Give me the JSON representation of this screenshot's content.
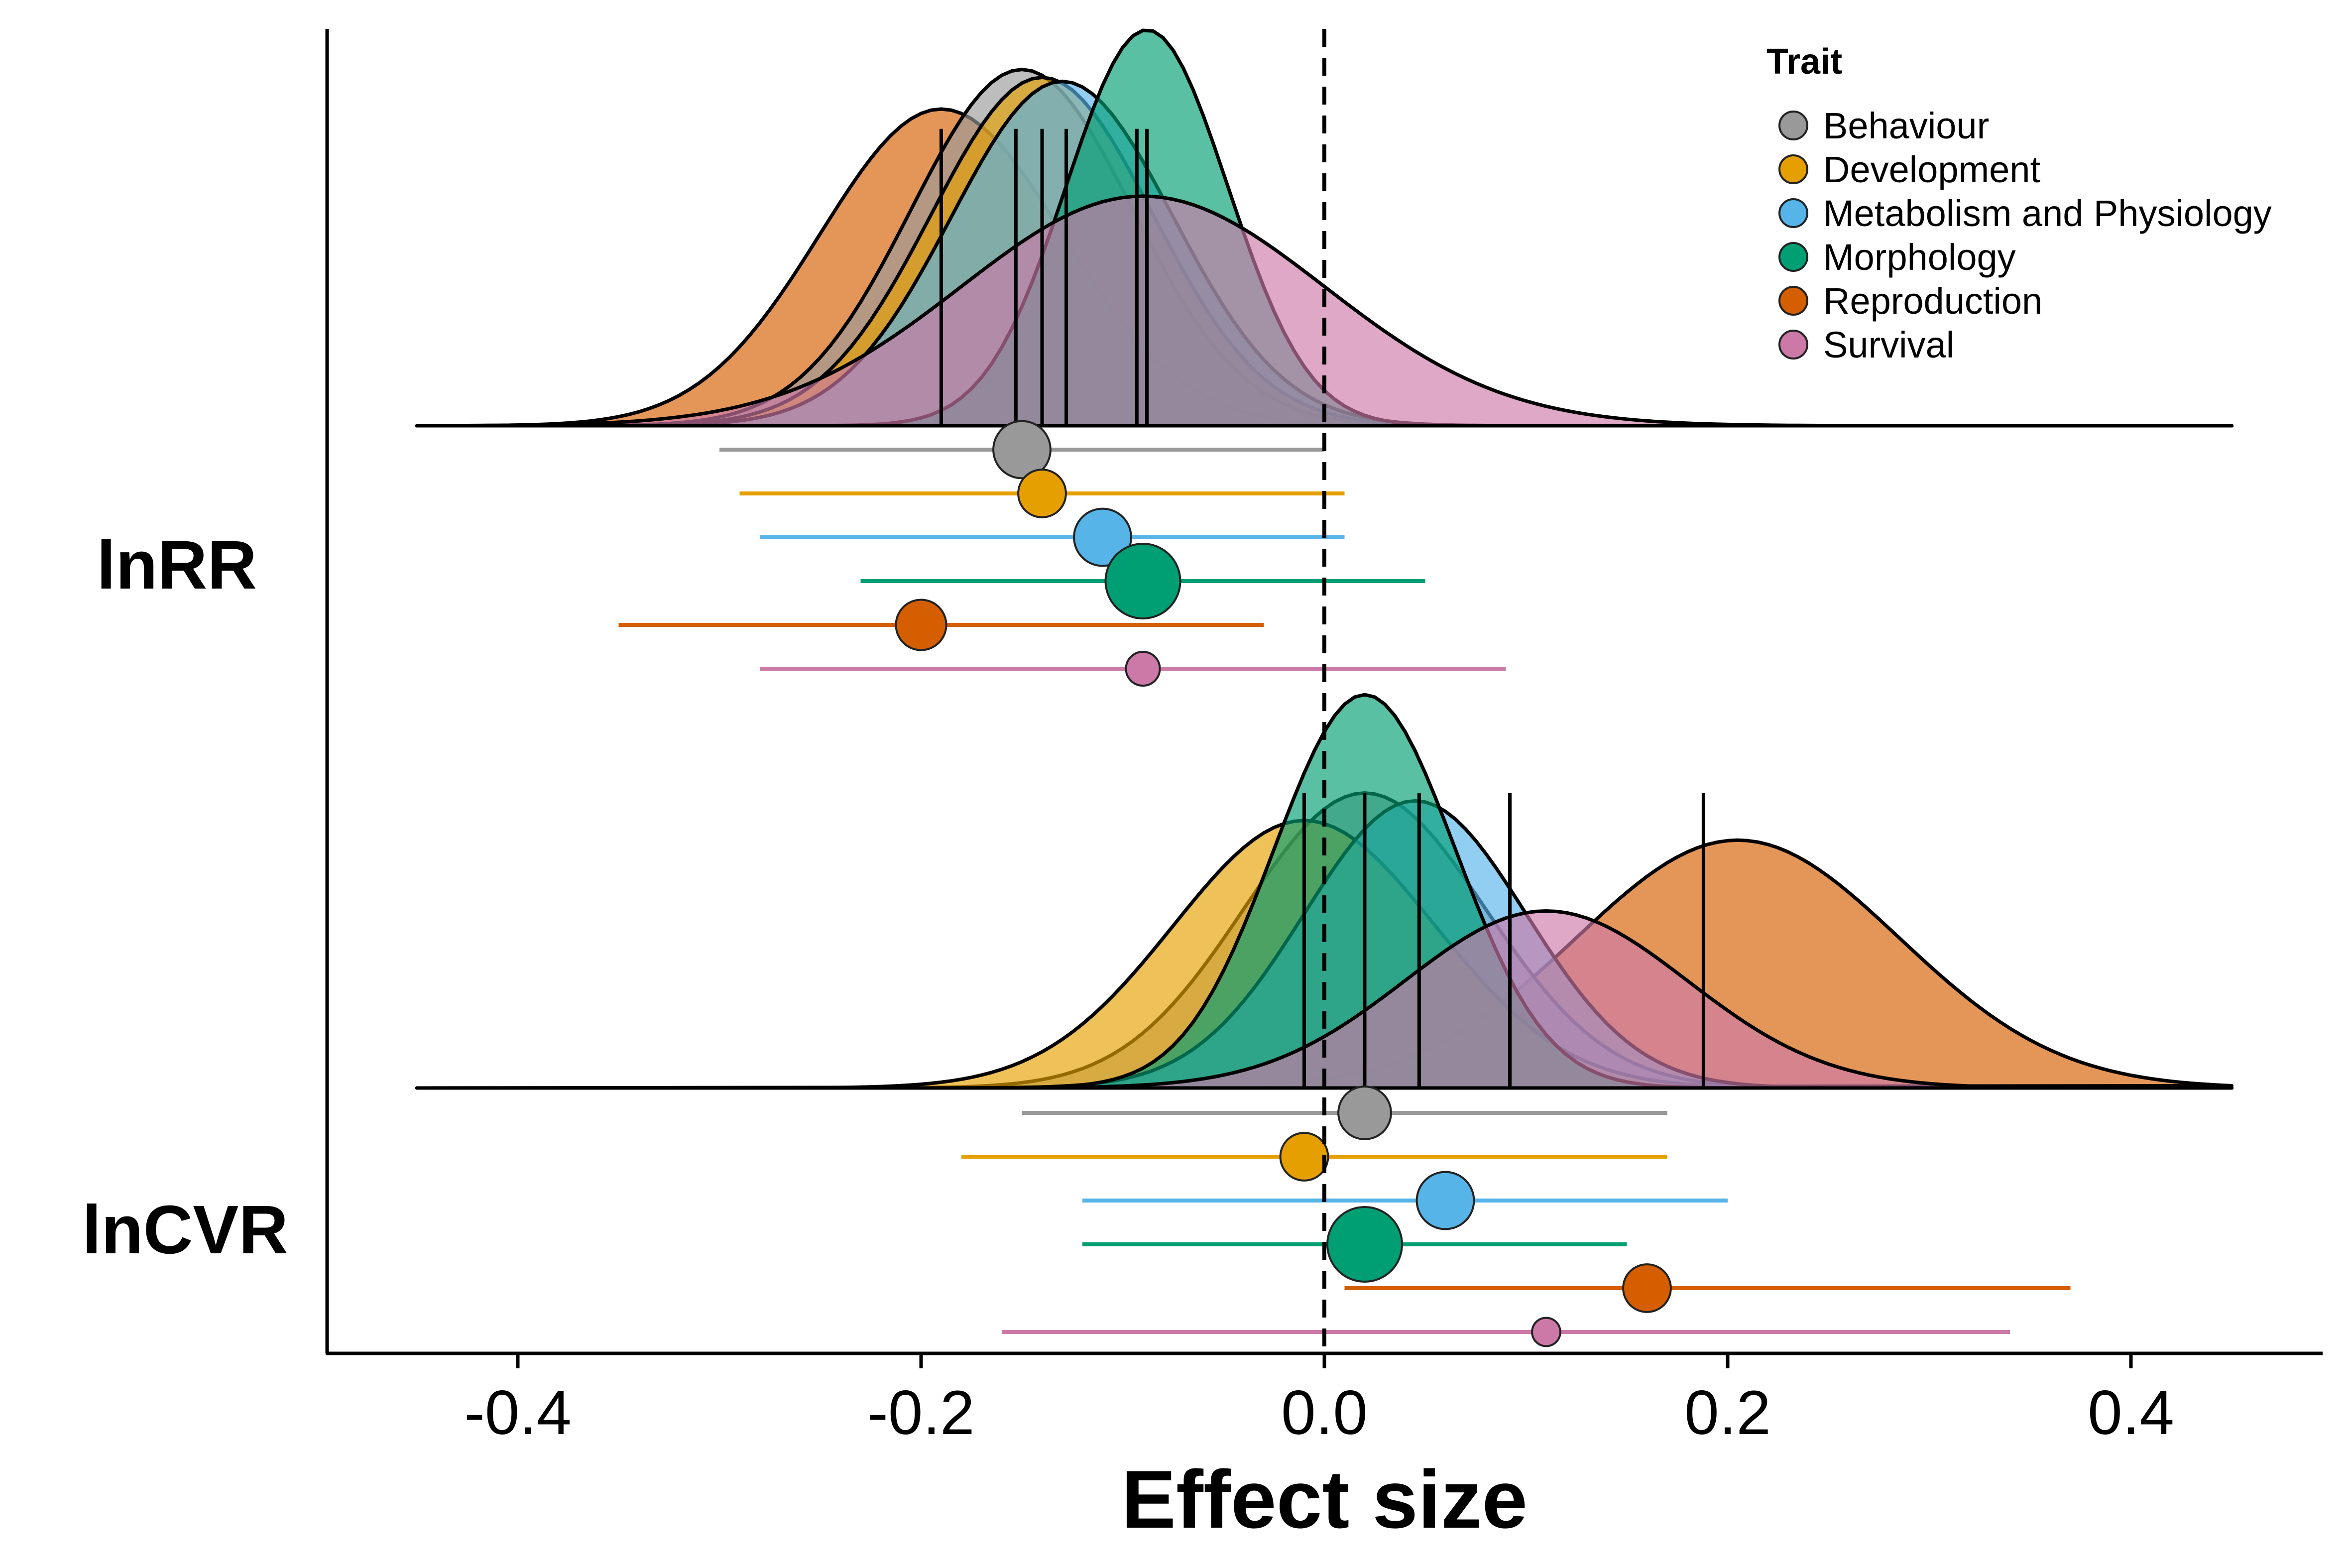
{
  "chart_data": {
    "type": "ridgeline-forest",
    "xlabel": "Effect size",
    "xlim": [
      -0.5,
      0.5
    ],
    "xticks": [
      -0.4,
      -0.2,
      0.0,
      0.2,
      0.4
    ],
    "xtick_labels": [
      "-0.4",
      "-0.2",
      "0.0",
      "0.2",
      "0.4"
    ],
    "reference_line": {
      "x": 0,
      "style": "dashed"
    },
    "legend": {
      "title": "Trait",
      "placement": "top-right",
      "items": [
        {
          "label": "Behaviour",
          "color": "#999999"
        },
        {
          "label": "Development",
          "color": "#E69F00"
        },
        {
          "label": "Metabolism and Physiology",
          "color": "#56B4E9"
        },
        {
          "label": "Morphology",
          "color": "#009E73"
        },
        {
          "label": "Reproduction",
          "color": "#D55E00"
        },
        {
          "label": "Survival",
          "color": "#CC79A7"
        }
      ]
    },
    "panels": [
      {
        "label": "lnRR",
        "density_peaks": [
          {
            "trait": "Behaviour",
            "mode": -0.15,
            "sd": 0.055,
            "peak": 0.9
          },
          {
            "trait": "Development",
            "mode": -0.14,
            "sd": 0.055,
            "peak": 0.88
          },
          {
            "trait": "Metabolism and Physiology",
            "mode": -0.13,
            "sd": 0.055,
            "peak": 0.87
          },
          {
            "trait": "Morphology",
            "mode": -0.088,
            "sd": 0.04,
            "peak": 1.0
          },
          {
            "trait": "Reproduction",
            "mode": -0.19,
            "sd": 0.06,
            "peak": 0.8
          },
          {
            "trait": "Survival",
            "mode": -0.09,
            "sd": 0.09,
            "peak": 0.58
          }
        ],
        "medians": [
          -0.19,
          -0.153,
          -0.14,
          -0.128,
          -0.093,
          -0.088
        ],
        "estimates": [
          {
            "trait": "Behaviour",
            "estimate": -0.15,
            "ci_low": -0.3,
            "ci_high": 0.0,
            "point_size": 0.5
          },
          {
            "trait": "Development",
            "estimate": -0.14,
            "ci_low": -0.29,
            "ci_high": 0.01,
            "point_size": 0.3
          },
          {
            "trait": "Metabolism and Physiology",
            "estimate": -0.11,
            "ci_low": -0.28,
            "ci_high": 0.01,
            "point_size": 0.5
          },
          {
            "trait": "Morphology",
            "estimate": -0.09,
            "ci_low": -0.23,
            "ci_high": 0.05,
            "point_size": 1.0
          },
          {
            "trait": "Reproduction",
            "estimate": -0.2,
            "ci_low": -0.35,
            "ci_high": -0.03,
            "point_size": 0.35
          },
          {
            "trait": "Survival",
            "estimate": -0.09,
            "ci_low": -0.28,
            "ci_high": 0.09,
            "point_size": 0.1
          }
        ]
      },
      {
        "label": "lnCVR",
        "density_peaks": [
          {
            "trait": "Behaviour",
            "mode": 0.02,
            "sd": 0.06,
            "peak": 0.75
          },
          {
            "trait": "Development",
            "mode": -0.01,
            "sd": 0.065,
            "peak": 0.68
          },
          {
            "trait": "Metabolism and Physiology",
            "mode": 0.045,
            "sd": 0.055,
            "peak": 0.73
          },
          {
            "trait": "Morphology",
            "mode": 0.02,
            "sd": 0.045,
            "peak": 1.0
          },
          {
            "trait": "Reproduction",
            "mode": 0.205,
            "sd": 0.08,
            "peak": 0.63
          },
          {
            "trait": "Survival",
            "mode": 0.11,
            "sd": 0.07,
            "peak": 0.45
          }
        ],
        "medians": [
          -0.01,
          0.02,
          0.02,
          0.047,
          0.092,
          0.188
        ],
        "estimates": [
          {
            "trait": "Behaviour",
            "estimate": 0.02,
            "ci_low": -0.15,
            "ci_high": 0.17,
            "point_size": 0.4
          },
          {
            "trait": "Development",
            "estimate": -0.01,
            "ci_low": -0.18,
            "ci_high": 0.17,
            "point_size": 0.3
          },
          {
            "trait": "Metabolism and Physiology",
            "estimate": 0.06,
            "ci_low": -0.12,
            "ci_high": 0.2,
            "point_size": 0.5
          },
          {
            "trait": "Morphology",
            "estimate": 0.02,
            "ci_low": -0.12,
            "ci_high": 0.15,
            "point_size": 1.0
          },
          {
            "trait": "Reproduction",
            "estimate": 0.16,
            "ci_low": 0.01,
            "ci_high": 0.37,
            "point_size": 0.3
          },
          {
            "trait": "Survival",
            "estimate": 0.11,
            "ci_low": -0.16,
            "ci_high": 0.34,
            "point_size": 0.05
          }
        ]
      }
    ]
  }
}
